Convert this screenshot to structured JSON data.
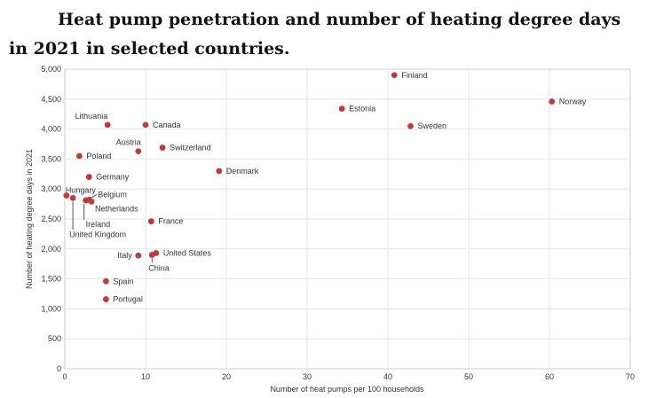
{
  "chart_data": {
    "type": "scatter",
    "title": "Heat pump penetration and number of heating degree days in 2021 in selected countries.",
    "xlabel": "Number of heat pumps per 100 households",
    "ylabel": "Number of heating degree days in 2021",
    "xlim": [
      0,
      70
    ],
    "ylim": [
      0,
      5000
    ],
    "x_ticks": [
      "0",
      "10",
      "20",
      "30",
      "40",
      "50",
      "60",
      "70"
    ],
    "y_ticks": [
      "0",
      "500",
      "1,000",
      "1,500",
      "2,000",
      "2,500",
      "3,000",
      "3,500",
      "4,000",
      "4,500",
      "5,000"
    ],
    "grid": true,
    "marker_color": "#c0393b",
    "points": [
      {
        "label": "Finland",
        "x": 40.8,
        "y": 4900
      },
      {
        "label": "Norway",
        "x": 60.3,
        "y": 4460
      },
      {
        "label": "Estonia",
        "x": 34.3,
        "y": 4340
      },
      {
        "label": "Sweden",
        "x": 42.8,
        "y": 4050
      },
      {
        "label": "Lithuania",
        "x": 5.3,
        "y": 4070
      },
      {
        "label": "Canada",
        "x": 10.0,
        "y": 4070
      },
      {
        "label": "Switzerland",
        "x": 12.1,
        "y": 3690
      },
      {
        "label": "Austria",
        "x": 9.1,
        "y": 3630
      },
      {
        "label": "Poland",
        "x": 1.8,
        "y": 3550
      },
      {
        "label": "Denmark",
        "x": 19.1,
        "y": 3300
      },
      {
        "label": "Germany",
        "x": 3.0,
        "y": 3200
      },
      {
        "label": "Hungary",
        "x": 0.2,
        "y": 2890
      },
      {
        "label": "United Kingdom",
        "x": 1.0,
        "y": 2850
      },
      {
        "label": "Ireland",
        "x": 2.6,
        "y": 2810
      },
      {
        "label": "Belgium",
        "x": 3.0,
        "y": 2820
      },
      {
        "label": "Netherlands",
        "x": 3.3,
        "y": 2790
      },
      {
        "label": "France",
        "x": 10.7,
        "y": 2460
      },
      {
        "label": "United States",
        "x": 11.3,
        "y": 1930
      },
      {
        "label": "China",
        "x": 10.8,
        "y": 1900
      },
      {
        "label": "Italy",
        "x": 9.1,
        "y": 1890
      },
      {
        "label": "Spain",
        "x": 5.1,
        "y": 1460
      },
      {
        "label": "Portugal",
        "x": 5.1,
        "y": 1160
      }
    ]
  }
}
